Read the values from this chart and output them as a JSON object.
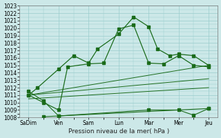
{
  "xlabel": "Pression niveau de la mer( hPa )",
  "ylim": [
    1008,
    1022.5
  ],
  "ymin": 1008,
  "ymax": 1023,
  "bg_color": "#cce8e8",
  "grid_color": "#99cccc",
  "line_color": "#1a6b1a",
  "x_tick_pos": [
    0,
    1,
    2,
    3,
    4,
    5,
    6
  ],
  "x_tick_labels": [
    "SaDim",
    "Ven",
    "Sam",
    "Lun",
    "Mar",
    "Mer",
    "Jeu"
  ],
  "xlim": [
    -0.3,
    6.3
  ],
  "series1_x": [
    0,
    0.3,
    1,
    1.5,
    2,
    2.3,
    3,
    3.5,
    4,
    4.3,
    4.7,
    5,
    5.5,
    6
  ],
  "series1_y": [
    1011,
    1012,
    1014.5,
    1016.3,
    1015.3,
    1017.2,
    1019.2,
    1021.5,
    1020.2,
    1017.2,
    1016.3,
    1016.5,
    1016.3,
    1015.0
  ],
  "series2_x": [
    0,
    0.5,
    1,
    1.3,
    2,
    2.5,
    3,
    3.5,
    4,
    4.5,
    5,
    5.5,
    6
  ],
  "series2_y": [
    1011,
    1010.0,
    1009.0,
    1014.8,
    1015.2,
    1015.3,
    1019.9,
    1020.4,
    1015.3,
    1015.2,
    1016.3,
    1015.0,
    1014.8
  ],
  "trend1_x": [
    0,
    6
  ],
  "trend1_y": [
    1011,
    1015.0
  ],
  "trend2_x": [
    0,
    6
  ],
  "trend2_y": [
    1011,
    1013.2
  ],
  "trend3_x": [
    0,
    6
  ],
  "trend3_y": [
    1010.5,
    1012.0
  ],
  "series3_x": [
    0,
    0.5,
    1,
    6
  ],
  "series3_y": [
    1011.5,
    1010.2,
    1008.2,
    1009.2
  ],
  "series4_x": [
    0.5,
    1,
    4,
    5,
    5.5,
    6
  ],
  "series4_y": [
    1008.1,
    1008.2,
    1009.0,
    1009.0,
    1008.3,
    1009.2
  ]
}
